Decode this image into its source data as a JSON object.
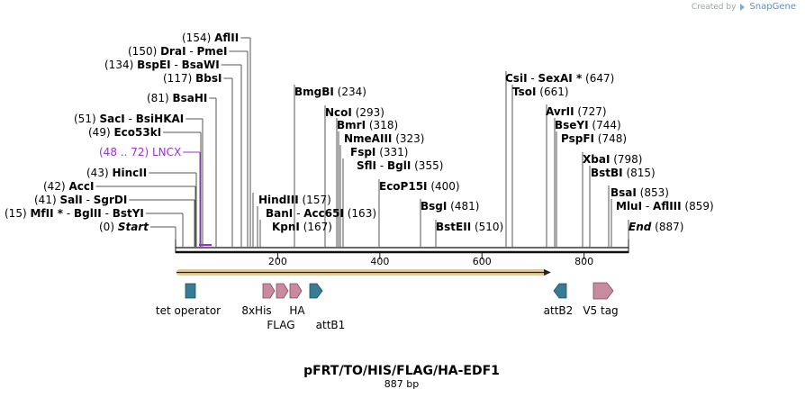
{
  "brand": {
    "created_by": "Created by",
    "name": "SnapGene"
  },
  "plasmid": {
    "name": "pFRT/TO/HIS/FLAG/HA-EDF1",
    "length_label": "887 bp",
    "length": 887
  },
  "colors": {
    "line": "#222222",
    "orange": "#f5a623",
    "purple": "#9b30d0",
    "teal": "#367c94",
    "pink": "#c9899f",
    "text": "#000000"
  },
  "ruler": {
    "ticks": [
      200,
      400,
      600,
      800
    ]
  },
  "labels": [
    {
      "pos": "(0)",
      "parts": [
        {
          "t": "Start",
          "c": "it"
        }
      ]
    },
    {
      "pos": "(15)",
      "parts": [
        {
          "t": "MfII *",
          "c": "nm"
        },
        {
          "t": " - ",
          "c": ""
        },
        {
          "t": "BglII",
          "c": "nm"
        },
        {
          "t": " - ",
          "c": ""
        },
        {
          "t": "BstYI",
          "c": "nm"
        }
      ]
    },
    {
      "pos": "(41)",
      "parts": [
        {
          "t": "SalI",
          "c": "nm"
        },
        {
          "t": " - ",
          "c": ""
        },
        {
          "t": "SgrDI",
          "c": "nm"
        }
      ]
    },
    {
      "pos": "(42)",
      "parts": [
        {
          "t": "AccI",
          "c": "nm"
        }
      ]
    },
    {
      "pos": "(43)",
      "parts": [
        {
          "t": "HincII",
          "c": "nm"
        }
      ]
    },
    {
      "pos": "(48 .. 72)",
      "parts": [
        {
          "t": "LNCX",
          "c": ""
        }
      ],
      "purple": true
    },
    {
      "pos": "(49)",
      "parts": [
        {
          "t": "Eco53kI",
          "c": "nm"
        }
      ]
    },
    {
      "pos": "(51)",
      "parts": [
        {
          "t": "SacI",
          "c": "nm"
        },
        {
          "t": " - ",
          "c": ""
        },
        {
          "t": "BsiHKAI",
          "c": "nm"
        }
      ]
    },
    {
      "pos": "(81)",
      "parts": [
        {
          "t": "BsaHI",
          "c": "nm"
        }
      ]
    },
    {
      "pos": "(117)",
      "parts": [
        {
          "t": "BbsI",
          "c": "nm"
        }
      ]
    },
    {
      "pos": "(134)",
      "parts": [
        {
          "t": "BspEI",
          "c": "nm"
        },
        {
          "t": " - ",
          "c": ""
        },
        {
          "t": "BsaWI",
          "c": "nm"
        }
      ]
    },
    {
      "pos": "(150)",
      "parts": [
        {
          "t": "DraI",
          "c": "nm"
        },
        {
          "t": " - ",
          "c": ""
        },
        {
          "t": "PmeI",
          "c": "nm"
        }
      ]
    },
    {
      "pos": "(154)",
      "parts": [
        {
          "t": "AflII",
          "c": "nm"
        }
      ]
    },
    {
      "pos": "(157)",
      "parts": [
        {
          "t": "HindIII",
          "c": "nm"
        }
      ]
    },
    {
      "pos": "(163)",
      "parts": [
        {
          "t": "BanI",
          "c": "nm"
        },
        {
          "t": " - ",
          "c": ""
        },
        {
          "t": "Acc65I",
          "c": "nm"
        }
      ]
    },
    {
      "pos": "(167)",
      "parts": [
        {
          "t": "KpnI",
          "c": "nm"
        }
      ]
    },
    {
      "pos": "(234)",
      "parts": [
        {
          "t": "BmgBI",
          "c": "nm"
        }
      ]
    },
    {
      "pos": "(293)",
      "parts": [
        {
          "t": "NcoI",
          "c": "nm"
        }
      ]
    },
    {
      "pos": "(318)",
      "parts": [
        {
          "t": "BmrI",
          "c": "nm"
        }
      ]
    },
    {
      "pos": "(323)",
      "parts": [
        {
          "t": "NmeAIII",
          "c": "nm"
        }
      ]
    },
    {
      "pos": "(331)",
      "parts": [
        {
          "t": "FspI",
          "c": "nm"
        }
      ]
    },
    {
      "pos": "(355)",
      "parts": [
        {
          "t": "SflI",
          "c": "nm"
        },
        {
          "t": " - ",
          "c": ""
        },
        {
          "t": "BglI",
          "c": "nm"
        }
      ]
    },
    {
      "pos": "(400)",
      "parts": [
        {
          "t": "EcoP15I",
          "c": "nm"
        }
      ]
    },
    {
      "pos": "(481)",
      "parts": [
        {
          "t": "BsgI",
          "c": "nm"
        }
      ]
    },
    {
      "pos": "(510)",
      "parts": [
        {
          "t": "BstEII",
          "c": "nm"
        }
      ]
    },
    {
      "pos": "(647)",
      "parts": [
        {
          "t": "CsiI",
          "c": "nm"
        },
        {
          "t": " - ",
          "c": ""
        },
        {
          "t": "SexAI *",
          "c": "nm"
        }
      ]
    },
    {
      "pos": "(661)",
      "parts": [
        {
          "t": "TsoI",
          "c": "nm"
        }
      ]
    },
    {
      "pos": "(727)",
      "parts": [
        {
          "t": "AvrII",
          "c": "nm"
        }
      ]
    },
    {
      "pos": "(744)",
      "parts": [
        {
          "t": "BseYI",
          "c": "nm"
        }
      ]
    },
    {
      "pos": "(748)",
      "parts": [
        {
          "t": "PspFI",
          "c": "nm"
        }
      ]
    },
    {
      "pos": "(798)",
      "parts": [
        {
          "t": "XbaI",
          "c": "nm"
        }
      ]
    },
    {
      "pos": "(815)",
      "parts": [
        {
          "t": "BstBI",
          "c": "nm"
        }
      ]
    },
    {
      "pos": "(853)",
      "parts": [
        {
          "t": "BsaI",
          "c": "nm"
        }
      ]
    },
    {
      "pos": "(859)",
      "parts": [
        {
          "t": "MluI",
          "c": "nm"
        },
        {
          "t": " - ",
          "c": ""
        },
        {
          "t": "AflIII",
          "c": "nm"
        }
      ]
    },
    {
      "pos": "(887)",
      "parts": [
        {
          "t": "End",
          "c": "it"
        }
      ]
    }
  ],
  "features": [
    {
      "name": "tet operator",
      "type": "box",
      "color": "teal"
    },
    {
      "name": "8xHis",
      "type": "arrow",
      "color": "pink"
    },
    {
      "name": "FLAG",
      "type": "arrow",
      "color": "pink"
    },
    {
      "name": "HA",
      "type": "arrow",
      "color": "pink"
    },
    {
      "name": "attB1",
      "type": "arrow",
      "color": "teal"
    },
    {
      "name": "attB2",
      "type": "arrow-left",
      "color": "teal"
    },
    {
      "name": "V5 tag",
      "type": "arrow",
      "color": "pink"
    }
  ]
}
